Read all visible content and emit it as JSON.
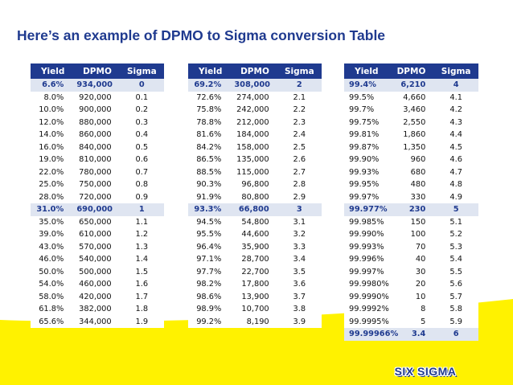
{
  "title": "Here’s an example of DPMO to Sigma conversion Table",
  "colors": {
    "title": "#1f3a8f",
    "header_bg": "#1f3a8f",
    "highlight_bg": "#dfe5f1",
    "band": "#fff200"
  },
  "headers": [
    "Yield",
    "DPMO",
    "Sigma"
  ],
  "tables": [
    {
      "rows": [
        {
          "yield": "6.6%",
          "dpmo": "934,000",
          "sigma": "0",
          "highlight": true
        },
        {
          "yield": "8.0%",
          "dpmo": "920,000",
          "sigma": "0.1"
        },
        {
          "yield": "10.0%",
          "dpmo": "900,000",
          "sigma": "0.2"
        },
        {
          "yield": "12.0%",
          "dpmo": "880,000",
          "sigma": "0.3"
        },
        {
          "yield": "14.0%",
          "dpmo": "860,000",
          "sigma": "0.4"
        },
        {
          "yield": "16.0%",
          "dpmo": "840,000",
          "sigma": "0.5"
        },
        {
          "yield": "19.0%",
          "dpmo": "810,000",
          "sigma": "0.6"
        },
        {
          "yield": "22.0%",
          "dpmo": "780,000",
          "sigma": "0.7"
        },
        {
          "yield": "25.0%",
          "dpmo": "750,000",
          "sigma": "0.8"
        },
        {
          "yield": "28.0%",
          "dpmo": "720,000",
          "sigma": "0.9"
        },
        {
          "yield": "31.0%",
          "dpmo": "690,000",
          "sigma": "1",
          "highlight": true
        },
        {
          "yield": "35.0%",
          "dpmo": "650,000",
          "sigma": "1.1"
        },
        {
          "yield": "39.0%",
          "dpmo": "610,000",
          "sigma": "1.2"
        },
        {
          "yield": "43.0%",
          "dpmo": "570,000",
          "sigma": "1.3"
        },
        {
          "yield": "46.0%",
          "dpmo": "540,000",
          "sigma": "1.4"
        },
        {
          "yield": "50.0%",
          "dpmo": "500,000",
          "sigma": "1.5"
        },
        {
          "yield": "54.0%",
          "dpmo": "460,000",
          "sigma": "1.6"
        },
        {
          "yield": "58.0%",
          "dpmo": "420,000",
          "sigma": "1.7"
        },
        {
          "yield": "61.8%",
          "dpmo": "382,000",
          "sigma": "1.8"
        },
        {
          "yield": "65.6%",
          "dpmo": "344,000",
          "sigma": "1.9"
        }
      ]
    },
    {
      "rows": [
        {
          "yield": "69.2%",
          "dpmo": "308,000",
          "sigma": "2",
          "highlight": true
        },
        {
          "yield": "72.6%",
          "dpmo": "274,000",
          "sigma": "2.1"
        },
        {
          "yield": "75.8%",
          "dpmo": "242,000",
          "sigma": "2.2"
        },
        {
          "yield": "78.8%",
          "dpmo": "212,000",
          "sigma": "2.3"
        },
        {
          "yield": "81.6%",
          "dpmo": "184,000",
          "sigma": "2.4"
        },
        {
          "yield": "84.2%",
          "dpmo": "158,000",
          "sigma": "2.5"
        },
        {
          "yield": "86.5%",
          "dpmo": "135,000",
          "sigma": "2.6"
        },
        {
          "yield": "88.5%",
          "dpmo": "115,000",
          "sigma": "2.7"
        },
        {
          "yield": "90.3%",
          "dpmo": "96,800",
          "sigma": "2.8"
        },
        {
          "yield": "91.9%",
          "dpmo": "80,800",
          "sigma": "2.9"
        },
        {
          "yield": "93.3%",
          "dpmo": "66,800",
          "sigma": "3",
          "highlight": true
        },
        {
          "yield": "94.5%",
          "dpmo": "54,800",
          "sigma": "3.1"
        },
        {
          "yield": "95.5%",
          "dpmo": "44,600",
          "sigma": "3.2"
        },
        {
          "yield": "96.4%",
          "dpmo": "35,900",
          "sigma": "3.3"
        },
        {
          "yield": "97.1%",
          "dpmo": "28,700",
          "sigma": "3.4"
        },
        {
          "yield": "97.7%",
          "dpmo": "22,700",
          "sigma": "3.5"
        },
        {
          "yield": "98.2%",
          "dpmo": "17,800",
          "sigma": "3.6"
        },
        {
          "yield": "98.6%",
          "dpmo": "13,900",
          "sigma": "3.7"
        },
        {
          "yield": "98.9%",
          "dpmo": "10,700",
          "sigma": "3.8"
        },
        {
          "yield": "99.2%",
          "dpmo": "8,190",
          "sigma": "3.9"
        }
      ]
    },
    {
      "rows": [
        {
          "yield": "99.4%",
          "dpmo": "6,210",
          "sigma": "4",
          "highlight": true
        },
        {
          "yield": "99.5%",
          "dpmo": "4,660",
          "sigma": "4.1"
        },
        {
          "yield": "99.7%",
          "dpmo": "3,460",
          "sigma": "4.2"
        },
        {
          "yield": "99.75%",
          "dpmo": "2,550",
          "sigma": "4.3"
        },
        {
          "yield": "99.81%",
          "dpmo": "1,860",
          "sigma": "4.4"
        },
        {
          "yield": "99.87%",
          "dpmo": "1,350",
          "sigma": "4.5"
        },
        {
          "yield": "99.90%",
          "dpmo": "960",
          "sigma": "4.6"
        },
        {
          "yield": "99.93%",
          "dpmo": "680",
          "sigma": "4.7"
        },
        {
          "yield": "99.95%",
          "dpmo": "480",
          "sigma": "4.8"
        },
        {
          "yield": "99.97%",
          "dpmo": "330",
          "sigma": "4.9"
        },
        {
          "yield": "99.977%",
          "dpmo": "230",
          "sigma": "5",
          "highlight": true
        },
        {
          "yield": "99.985%",
          "dpmo": "150",
          "sigma": "5.1"
        },
        {
          "yield": "99.990%",
          "dpmo": "100",
          "sigma": "5.2"
        },
        {
          "yield": "99.993%",
          "dpmo": "70",
          "sigma": "5.3"
        },
        {
          "yield": "99.996%",
          "dpmo": "40",
          "sigma": "5.4"
        },
        {
          "yield": "99.997%",
          "dpmo": "30",
          "sigma": "5.5"
        },
        {
          "yield": "99.9980%",
          "dpmo": "20",
          "sigma": "5.6"
        },
        {
          "yield": "99.9990%",
          "dpmo": "10",
          "sigma": "5.7"
        },
        {
          "yield": "99.9992%",
          "dpmo": "8",
          "sigma": "5.8"
        },
        {
          "yield": "99.9995%",
          "dpmo": "5",
          "sigma": "5.9"
        },
        {
          "yield": "99.99966%",
          "dpmo": "3.4",
          "sigma": "6",
          "highlight": true
        }
      ]
    }
  ],
  "logo": "SIX SIGMA"
}
